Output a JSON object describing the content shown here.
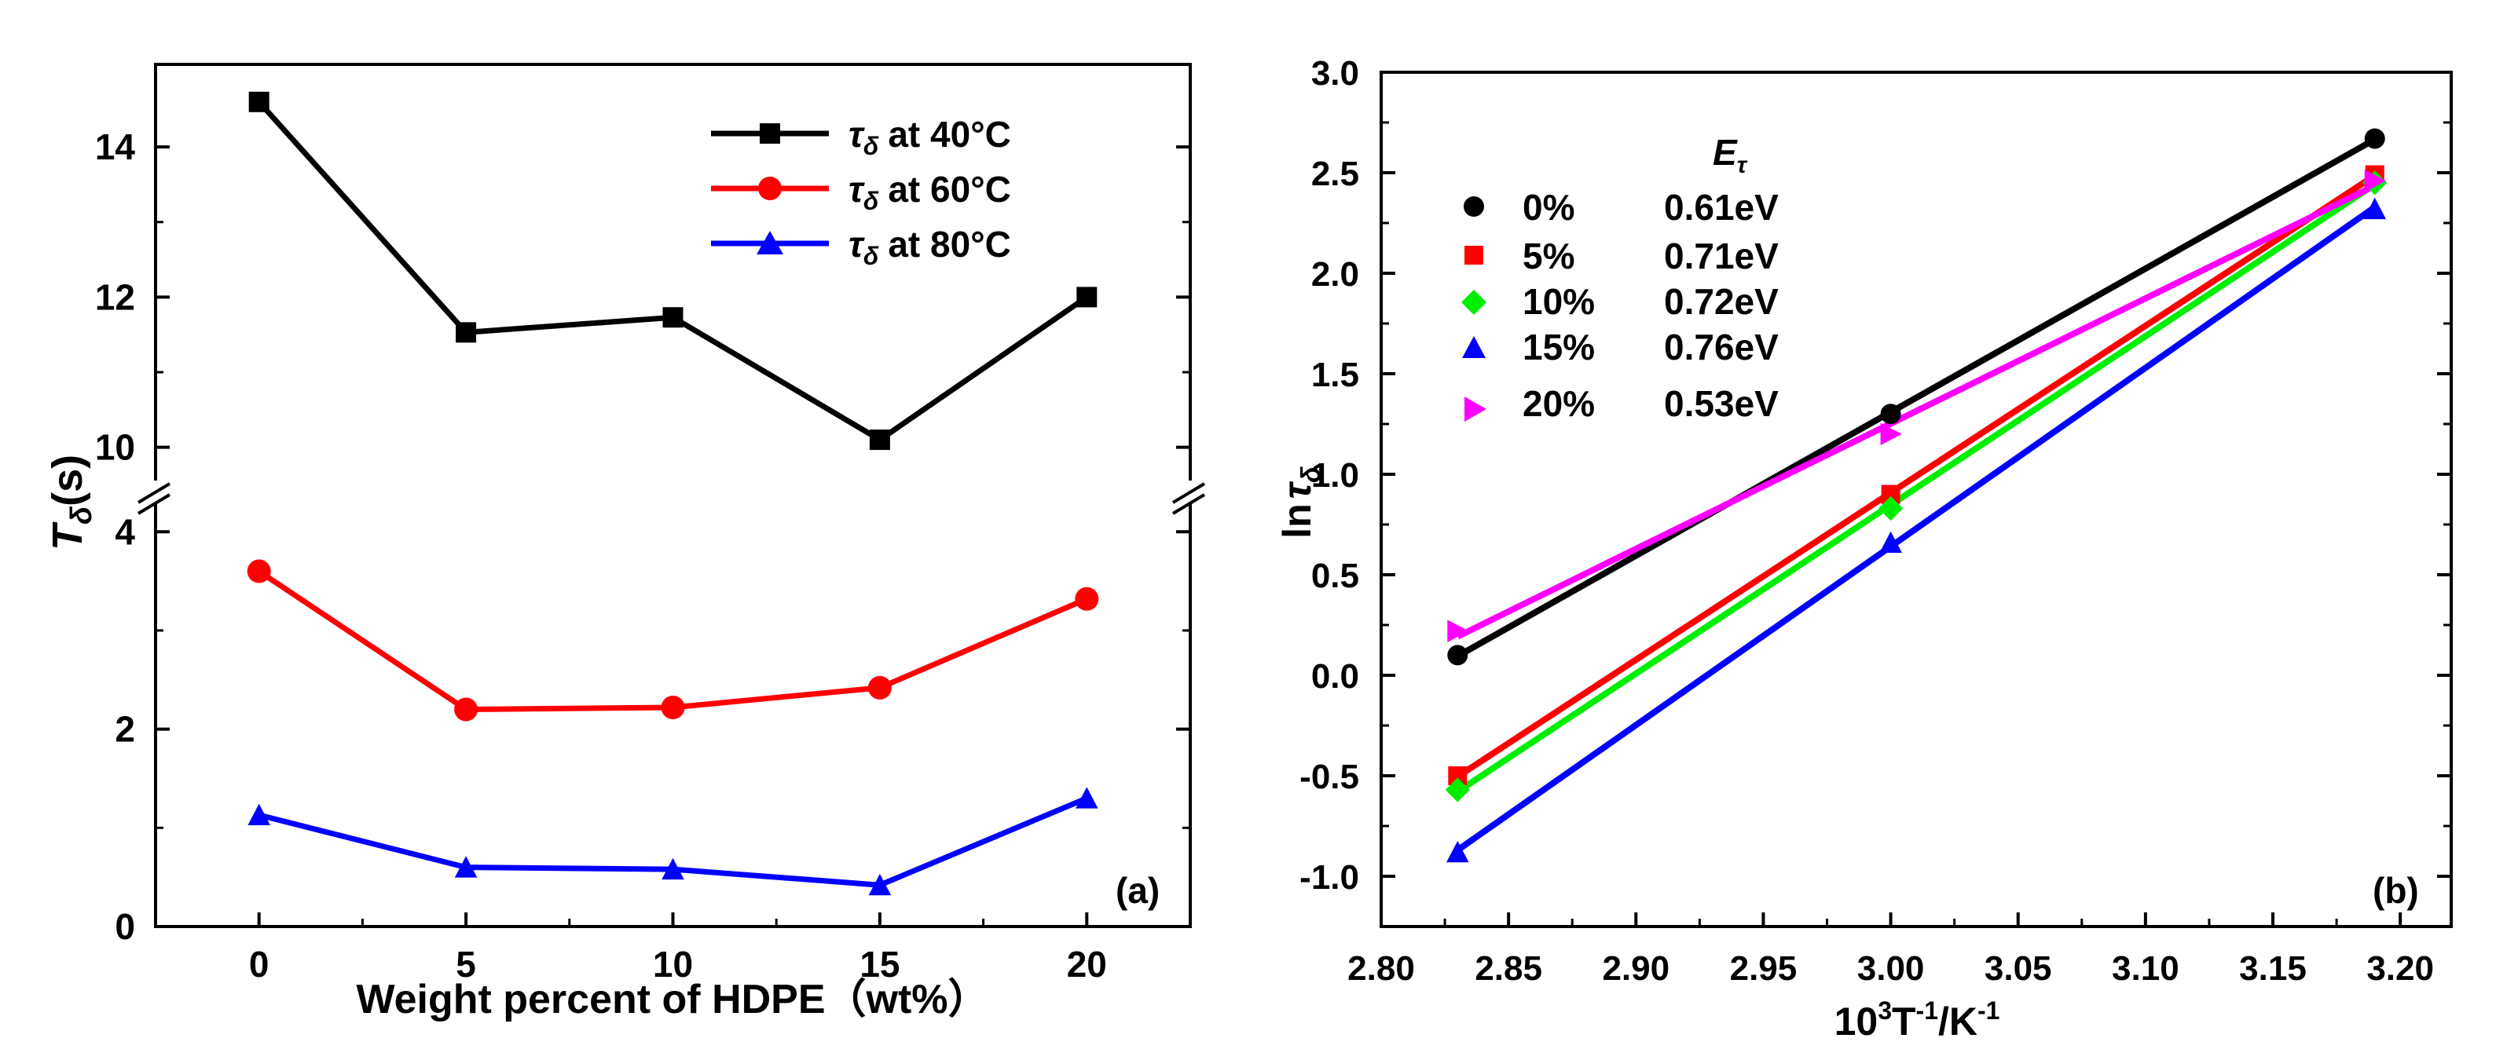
{
  "chart_data": [
    {
      "type": "line",
      "panel_label": "(a)",
      "xlabel": "Weight percent of HDPE（wt%）",
      "ylabel_main": "T",
      "ylabel_sub": "δ",
      "ylabel_unit": "(s)",
      "x": [
        0,
        5,
        10,
        15,
        20
      ],
      "xlim": [
        -2.5,
        22.5
      ],
      "xticks": [
        "0",
        "5",
        "10",
        "15",
        "20"
      ],
      "y_break": true,
      "ylim_lower": [
        0,
        4.4
      ],
      "ylim_upper": [
        9.4,
        15.1
      ],
      "yticks_lower": [
        "0",
        "2",
        "4"
      ],
      "yticks_upper": [
        "10",
        "12",
        "14"
      ],
      "legend_position": "top-right",
      "series": [
        {
          "name": "at 40°C",
          "symbol": "τ",
          "sub": "δ",
          "color": "#000000",
          "marker": "square",
          "values": [
            14.6,
            11.53,
            11.73,
            10.1,
            12.0
          ]
        },
        {
          "name": "at 60°C",
          "symbol": "τ",
          "sub": "δ",
          "color": "#ff0000",
          "marker": "circle",
          "values": [
            3.6,
            2.2,
            2.22,
            2.42,
            3.32
          ]
        },
        {
          "name": "at 80°C",
          "symbol": "τ",
          "sub": "δ",
          "color": "#0000ff",
          "marker": "triangle",
          "values": [
            1.13,
            0.6,
            0.58,
            0.42,
            1.3
          ]
        }
      ]
    },
    {
      "type": "scatter",
      "panel_label": "(b)",
      "xlabel_base": "10",
      "xlabel_sup1": "3",
      "xlabel_mid": "T",
      "xlabel_sup2": "-1",
      "xlabel_mid2": "/K",
      "xlabel_sup3": "-1",
      "ylabel_main": "ln",
      "ylabel_sym": "τ",
      "ylabel_sub": "δ",
      "xlim": [
        2.8,
        3.22
      ],
      "ylim": [
        -1.25,
        3.0
      ],
      "xticks": [
        "2.80",
        "2.85",
        "2.90",
        "2.95",
        "3.00",
        "3.05",
        "3.10",
        "3.15",
        "3.20"
      ],
      "yticks": [
        "-1.0",
        "-0.5",
        "0.0",
        "0.5",
        "1.0",
        "1.5",
        "2.0",
        "2.5",
        "3.0"
      ],
      "x": [
        2.83,
        3.0,
        3.19
      ],
      "legend_title_main": "E",
      "legend_title_sub": "τ",
      "legend_position": "top-left",
      "series": [
        {
          "name": "0%",
          "energy": "0.61eV",
          "color": "#000000",
          "marker": "circle",
          "values": [
            0.1,
            1.3,
            2.67
          ]
        },
        {
          "name": "5%",
          "energy": "0.71eV",
          "color": "#ff0000",
          "marker": "square",
          "values": [
            -0.5,
            0.9,
            2.49
          ]
        },
        {
          "name": "10%",
          "energy": "0.72eV",
          "color": "#00ee00",
          "marker": "diamond",
          "values": [
            -0.57,
            0.83,
            2.45
          ]
        },
        {
          "name": "15%",
          "energy": "0.76eV",
          "color": "#0000ff",
          "marker": "triangle",
          "values": [
            -0.88,
            0.66,
            2.32
          ]
        },
        {
          "name": "20%",
          "energy": "0.53eV",
          "color": "#ff00ff",
          "marker": "triangle-right",
          "values": [
            0.22,
            1.2,
            2.46
          ]
        }
      ]
    }
  ]
}
